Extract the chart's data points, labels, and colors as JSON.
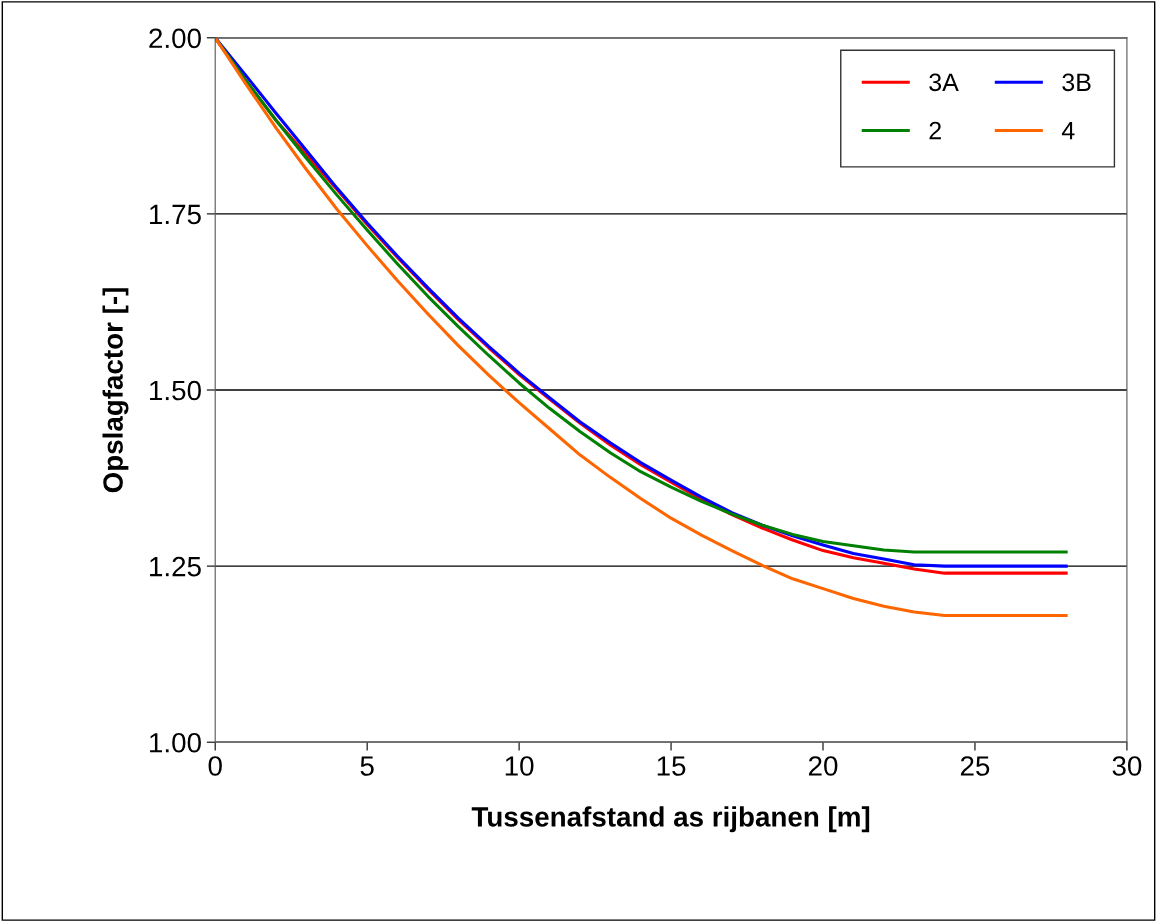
{
  "chart_data": {
    "type": "line",
    "xlabel": "Tussenafstand as rijbanen [m]",
    "ylabel": "Opslagfactor [-]",
    "x": [
      0,
      1,
      2,
      3,
      4,
      5,
      6,
      7,
      8,
      9,
      10,
      11,
      12,
      13,
      14,
      15,
      16,
      17,
      18,
      19,
      20,
      21,
      22,
      23,
      24,
      28
    ],
    "series": [
      {
        "name": "3A",
        "color": "#ff0000",
        "values": [
          2.0,
          1.94,
          1.883,
          1.834,
          1.785,
          1.735,
          1.688,
          1.643,
          1.6,
          1.56,
          1.522,
          1.487,
          1.453,
          1.422,
          1.394,
          1.369,
          1.345,
          1.323,
          1.304,
          1.287,
          1.272,
          1.262,
          1.254,
          1.246,
          1.24,
          1.24
        ]
      },
      {
        "name": "3B",
        "color": "#0000ff",
        "values": [
          2.0,
          1.947,
          1.893,
          1.84,
          1.787,
          1.737,
          1.69,
          1.645,
          1.602,
          1.562,
          1.524,
          1.489,
          1.455,
          1.425,
          1.397,
          1.372,
          1.348,
          1.326,
          1.308,
          1.293,
          1.28,
          1.268,
          1.26,
          1.252,
          1.25,
          1.25
        ]
      },
      {
        "name": "2",
        "color": "#008000",
        "values": [
          2.0,
          1.94,
          1.883,
          1.829,
          1.777,
          1.727,
          1.679,
          1.633,
          1.59,
          1.549,
          1.51,
          1.474,
          1.441,
          1.411,
          1.384,
          1.362,
          1.342,
          1.324,
          1.308,
          1.295,
          1.285,
          1.279,
          1.273,
          1.27,
          1.27,
          1.27
        ]
      },
      {
        "name": "4",
        "color": "#ff6600",
        "values": [
          2.0,
          1.935,
          1.872,
          1.813,
          1.757,
          1.705,
          1.655,
          1.608,
          1.563,
          1.521,
          1.482,
          1.445,
          1.408,
          1.376,
          1.346,
          1.318,
          1.294,
          1.272,
          1.251,
          1.232,
          1.218,
          1.204,
          1.193,
          1.185,
          1.18,
          1.18
        ]
      }
    ],
    "xlim": [
      0,
      30
    ],
    "xticks": [
      0,
      5,
      10,
      15,
      20,
      25,
      30
    ],
    "ylim": [
      1.0,
      2.0
    ],
    "yticks": [
      {
        "value": 1.0,
        "label": "1.00"
      },
      {
        "value": 1.25,
        "label": "1.25"
      },
      {
        "value": 1.5,
        "label": "1.50"
      },
      {
        "value": 1.75,
        "label": "1.75"
      },
      {
        "value": 2.0,
        "label": "2.00"
      }
    ],
    "grid": "y",
    "legend": "top right",
    "marker": "none",
    "line_style": "solid"
  }
}
